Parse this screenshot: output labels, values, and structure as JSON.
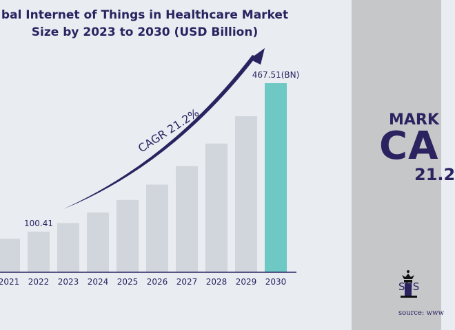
{
  "title_line1": "bal Internet of Things in Healthcare Market",
  "title_line2": "Size by 2023 to 2030 (USD Billion)",
  "chart_data": {
    "type": "bar",
    "categories": [
      "2021",
      "2022",
      "2023",
      "2024",
      "2025",
      "2026",
      "2027",
      "2028",
      "2029",
      "2030"
    ],
    "values": [
      82.8,
      100.41,
      121.7,
      147.5,
      178.8,
      216.7,
      262.6,
      318.3,
      385.8,
      467.51
    ],
    "data_labels": {
      "2022": "100.41",
      "2030": "467.51(BN)"
    },
    "annotation": "CAGR 21.2%",
    "ylim": [
      0,
      467.51
    ],
    "grid": false,
    "colors": {
      "bar": "#d1d6dc",
      "highlight": "#6ec9c4",
      "arrow": "#2a2360",
      "text": "#2a2360"
    }
  },
  "side": {
    "market": "MARK",
    "cagr": "CA",
    "rate": "21.2",
    "brand": "SNS",
    "source": "source: www"
  }
}
